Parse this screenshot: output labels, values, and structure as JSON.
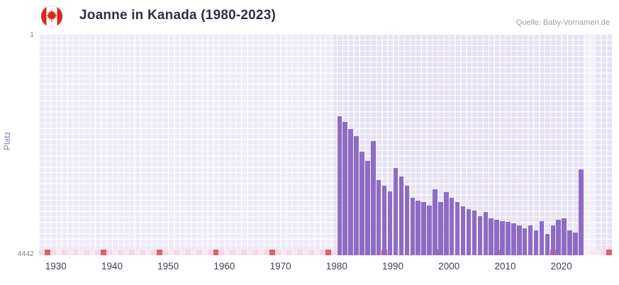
{
  "header": {
    "title": "Joanne in Kanada (1980-2023)",
    "source": "Quelle: Baby-Vornamen.de",
    "flag_icon": "canada-flag"
  },
  "axes": {
    "y_label": "Platz",
    "y_top_label": "1",
    "y_bottom_label": "4442",
    "x_tick_labels": [
      "1930",
      "1940",
      "1950",
      "1960",
      "1970",
      "1980",
      "1990",
      "2000",
      "2010",
      "2020"
    ]
  },
  "colors": {
    "bar": "#8d6cc4",
    "plot_background": "#e7e2f3",
    "grid_line": "#ffffff",
    "strip_light": "#fbe9f2",
    "strip_alt": "#f5d9e7",
    "strip_red": "#e05f70",
    "title_text": "#2e3142",
    "source_text": "#9b9ba8",
    "tick_label_text": "#3d4157",
    "y_axis_label_text": "#8a80b5",
    "flag_red": "#d52b1e"
  },
  "chart_data": {
    "type": "bar",
    "title": "Joanne in Kanada (1980-2023)",
    "xlabel": "",
    "ylabel": "Platz",
    "y_axis": {
      "min": 1,
      "max": 4442,
      "inverted": true,
      "top_tick": "1",
      "bottom_tick": "4442"
    },
    "x_axis": {
      "start": 1927,
      "end": 2029,
      "tick_years": [
        1930,
        1940,
        1950,
        1960,
        1970,
        1980,
        1990,
        2000,
        2010,
        2020
      ]
    },
    "grid": true,
    "legend": "none",
    "highlight_band": {
      "from": 2024,
      "to": 2026
    },
    "no_data_marker_years_step": 10,
    "years": [
      1980,
      1981,
      1982,
      1983,
      1984,
      1985,
      1986,
      1987,
      1988,
      1989,
      1990,
      1991,
      1992,
      1993,
      1994,
      1995,
      1996,
      1997,
      1998,
      1999,
      2000,
      2001,
      2002,
      2003,
      2004,
      2005,
      2006,
      2007,
      2008,
      2009,
      2010,
      2011,
      2012,
      2013,
      2014,
      2015,
      2016,
      2017,
      2018,
      2019,
      2020,
      2021,
      2022,
      2023
    ],
    "values": [
      1650,
      1760,
      1905,
      2050,
      2365,
      2550,
      2150,
      2940,
      3040,
      3155,
      2695,
      2865,
      3040,
      3295,
      3340,
      3370,
      3440,
      3125,
      3370,
      3180,
      3295,
      3370,
      3465,
      3510,
      3550,
      3655,
      3580,
      3695,
      3725,
      3755,
      3770,
      3795,
      3840,
      3895,
      3840,
      3940,
      3755,
      4010,
      3840,
      3725,
      3695,
      3940,
      3990,
      2720
    ]
  }
}
